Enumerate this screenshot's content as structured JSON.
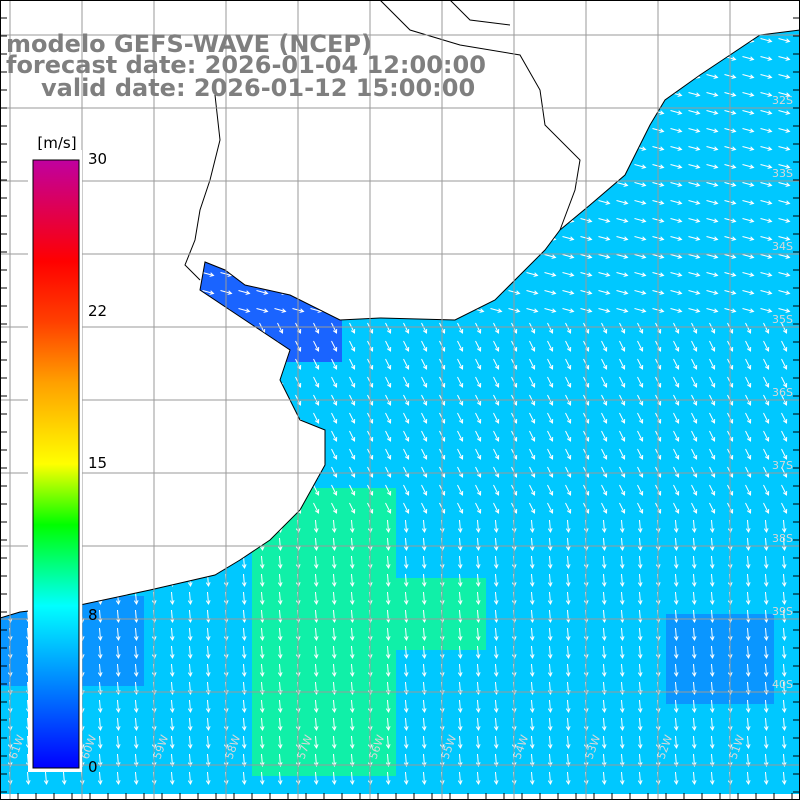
{
  "header": {
    "line1": "modelo GEFS-WAVE (NCEP)",
    "line2": "forecast date: 2026-01-04 12:00:00",
    "line3": "valid date: 2026-01-12 15:00:00"
  },
  "colorbar": {
    "unit": "[m/s]",
    "ticks": [
      "30",
      "22",
      "15",
      "8",
      "0"
    ],
    "tick_values": [
      30,
      22,
      15,
      8,
      0
    ],
    "range": [
      0,
      30
    ],
    "stops": [
      {
        "value": 0,
        "color": "#0000ff"
      },
      {
        "value": 4,
        "color": "#0080ff"
      },
      {
        "value": 8,
        "color": "#00ffff"
      },
      {
        "value": 12,
        "color": "#00ff00"
      },
      {
        "value": 15,
        "color": "#ffff00"
      },
      {
        "value": 19,
        "color": "#ffa000"
      },
      {
        "value": 22,
        "color": "#ff4000"
      },
      {
        "value": 25,
        "color": "#ff0000"
      },
      {
        "value": 30,
        "color": "#c000a0"
      }
    ]
  },
  "map": {
    "lat_labels": [
      "32S",
      "33S",
      "34S",
      "35S",
      "36S",
      "37S",
      "38S",
      "39S",
      "40S"
    ],
    "lon_labels": [
      "61W",
      "60W",
      "59W",
      "58W",
      "57W",
      "56W",
      "55W",
      "54W",
      "53W",
      "52W",
      "51W"
    ],
    "land_color": "#ffffff",
    "coast_color": "#000000",
    "grid_color": "#9a9a9a",
    "arrow_color": "#ffffff"
  }
}
